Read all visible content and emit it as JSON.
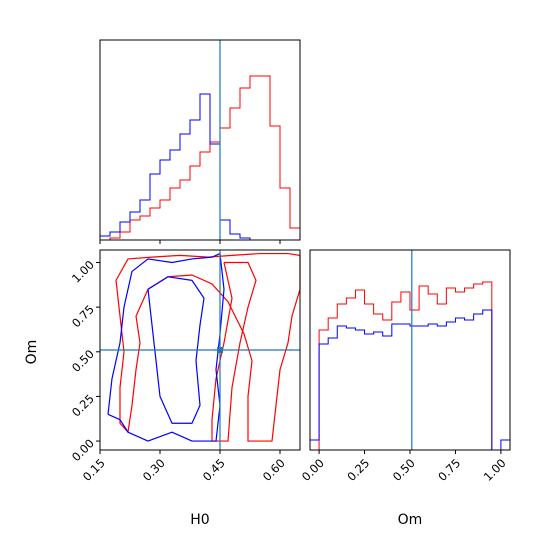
{
  "chart_data": {
    "type": "corner",
    "parameters": [
      "H0",
      "Om"
    ],
    "truth": {
      "H0": 0.45,
      "Om": 0.51
    },
    "colors": {
      "series_a": "#ff0000",
      "series_b": "#0000ff",
      "truth": "#1f77b4"
    },
    "panels": [
      {
        "name": "hist-H0",
        "type": "histogram-step",
        "xlim": [
          0.15,
          0.65
        ],
        "ylim": [
          0,
          1.0
        ],
        "bin_edges": [
          0.15,
          0.175,
          0.2,
          0.225,
          0.25,
          0.275,
          0.3,
          0.325,
          0.35,
          0.375,
          0.4,
          0.425,
          0.45,
          0.475,
          0.5,
          0.525,
          0.55,
          0.575,
          0.6,
          0.625,
          0.65
        ],
        "series": [
          {
            "color_key": "series_a",
            "values": [
              0,
              0.01,
              0.04,
              0.1,
              0.12,
              0.16,
              0.2,
              0.26,
              0.3,
              0.37,
              0.44,
              0.49,
              0.56,
              0.66,
              0.76,
              0.82,
              0.82,
              0.57,
              0.26,
              0.06
            ]
          },
          {
            "color_key": "series_b",
            "values": [
              0.02,
              0.04,
              0.09,
              0.14,
              0.2,
              0.33,
              0.4,
              0.45,
              0.53,
              0.6,
              0.73,
              0.48,
              0.1,
              0.03,
              0.01,
              0,
              0,
              0,
              0,
              0
            ]
          }
        ]
      },
      {
        "name": "hist-Om",
        "type": "histogram-step",
        "xlabel": "Om",
        "xlim": [
          -0.05,
          1.05
        ],
        "ylim": [
          0,
          1.0
        ],
        "xticks": [
          "0.00",
          "0.25",
          "0.50",
          "0.75",
          "1.00"
        ],
        "xtick_values": [
          0,
          0.25,
          0.5,
          0.75,
          1.0
        ],
        "bin_edges": [
          -0.05,
          0,
          0.05,
          0.1,
          0.15,
          0.2,
          0.25,
          0.3,
          0.35,
          0.4,
          0.45,
          0.5,
          0.55,
          0.6,
          0.65,
          0.7,
          0.75,
          0.8,
          0.85,
          0.9,
          0.95,
          1.0,
          1.05
        ],
        "series": [
          {
            "color_key": "series_a",
            "values": [
              0,
              0.6,
              0.66,
              0.73,
              0.76,
              0.8,
              0.73,
              0.68,
              0.65,
              0.74,
              0.79,
              0.7,
              0.82,
              0.78,
              0.73,
              0.81,
              0.79,
              0.81,
              0.83,
              0.84,
              0,
              0
            ]
          },
          {
            "color_key": "series_b",
            "values": [
              0.05,
              0.53,
              0.56,
              0.62,
              0.61,
              0.6,
              0.58,
              0.59,
              0.57,
              0.63,
              0.63,
              0.62,
              0.62,
              0.63,
              0.62,
              0.64,
              0.66,
              0.65,
              0.68,
              0.7,
              0,
              0.05
            ]
          }
        ]
      },
      {
        "name": "contour-H0-Om",
        "type": "contour",
        "xlabel": "H0",
        "ylabel": "Om",
        "xlim": [
          0.15,
          0.65
        ],
        "ylim": [
          -0.05,
          1.07
        ],
        "xticks": [
          "0.15",
          "0.30",
          "0.45",
          "0.60"
        ],
        "xtick_values": [
          0.15,
          0.3,
          0.45,
          0.6
        ],
        "yticks": [
          "0.00",
          "0.25",
          "0.50",
          "0.75",
          "1.00"
        ],
        "ytick_values": [
          0,
          0.25,
          0.5,
          0.75,
          1.0
        ],
        "contours": [
          {
            "color_key": "series_a",
            "points": [
              [
                0.22,
                1.02
              ],
              [
                0.28,
                1.03
              ],
              [
                0.35,
                1.04
              ],
              [
                0.42,
                1.03
              ],
              [
                0.48,
                1.04
              ],
              [
                0.55,
                1.05
              ],
              [
                0.62,
                1.05
              ],
              [
                0.65,
                1.04
              ],
              [
                0.65,
                0.85
              ],
              [
                0.63,
                0.7
              ],
              [
                0.62,
                0.55
              ],
              [
                0.6,
                0.4
              ],
              [
                0.59,
                0.2
              ],
              [
                0.58,
                0.0
              ],
              [
                0.52,
                0.0
              ],
              [
                0.52,
                0.25
              ],
              [
                0.53,
                0.45
              ],
              [
                0.51,
                0.6
              ],
              [
                0.47,
                0.78
              ],
              [
                0.43,
                0.88
              ],
              [
                0.38,
                0.93
              ],
              [
                0.32,
                0.92
              ],
              [
                0.27,
                0.85
              ],
              [
                0.24,
                0.7
              ],
              [
                0.25,
                0.55
              ],
              [
                0.24,
                0.4
              ],
              [
                0.23,
                0.2
              ],
              [
                0.22,
                0.05
              ],
              [
                0.2,
                0.1
              ],
              [
                0.2,
                0.3
              ],
              [
                0.21,
                0.5
              ],
              [
                0.2,
                0.7
              ],
              [
                0.19,
                0.9
              ],
              [
                0.22,
                1.02
              ]
            ]
          },
          {
            "color_key": "series_a",
            "points": [
              [
                0.46,
                1.0
              ],
              [
                0.48,
                0.8
              ],
              [
                0.46,
                0.55
              ],
              [
                0.44,
                0.35
              ],
              [
                0.43,
                0.12
              ],
              [
                0.43,
                0.0
              ],
              [
                0.47,
                0.0
              ],
              [
                0.48,
                0.3
              ],
              [
                0.5,
                0.55
              ],
              [
                0.52,
                0.75
              ],
              [
                0.54,
                0.9
              ],
              [
                0.52,
                1.0
              ],
              [
                0.46,
                1.0
              ]
            ]
          },
          {
            "color_key": "series_b",
            "points": [
              [
                0.17,
                0.15
              ],
              [
                0.18,
                0.35
              ],
              [
                0.2,
                0.55
              ],
              [
                0.21,
                0.75
              ],
              [
                0.23,
                0.95
              ],
              [
                0.27,
                1.02
              ],
              [
                0.33,
                1.0
              ],
              [
                0.38,
                1.02
              ],
              [
                0.43,
                1.03
              ],
              [
                0.45,
                1.05
              ],
              [
                0.46,
                0.85
              ],
              [
                0.45,
                0.6
              ],
              [
                0.44,
                0.4
              ],
              [
                0.45,
                0.2
              ],
              [
                0.44,
                0.0
              ],
              [
                0.38,
                0.0
              ],
              [
                0.33,
                0.05
              ],
              [
                0.27,
                0.0
              ],
              [
                0.22,
                0.05
              ],
              [
                0.2,
                0.12
              ],
              [
                0.17,
                0.15
              ]
            ]
          },
          {
            "color_key": "series_b",
            "points": [
              [
                0.27,
                0.85
              ],
              [
                0.32,
                0.92
              ],
              [
                0.38,
                0.9
              ],
              [
                0.41,
                0.8
              ],
              [
                0.4,
                0.65
              ],
              [
                0.39,
                0.45
              ],
              [
                0.4,
                0.2
              ],
              [
                0.38,
                0.1
              ],
              [
                0.33,
                0.1
              ],
              [
                0.3,
                0.25
              ],
              [
                0.29,
                0.45
              ],
              [
                0.28,
                0.65
              ],
              [
                0.27,
                0.85
              ]
            ]
          }
        ]
      }
    ]
  }
}
